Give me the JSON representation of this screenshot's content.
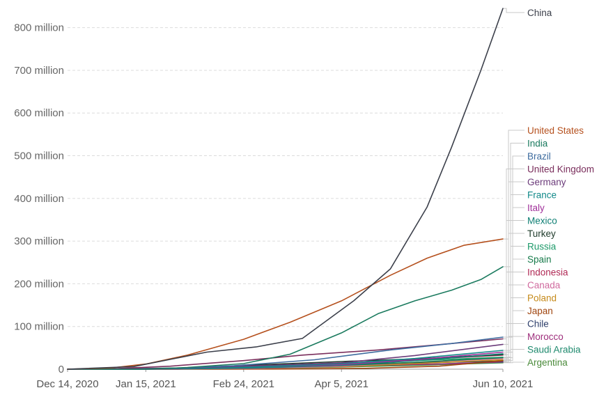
{
  "chart_data": {
    "type": "line",
    "title": "",
    "xlabel": "",
    "ylabel": "",
    "x_ticks": [
      "Dec 14, 2020",
      "Jan 15, 2021",
      "Feb 24, 2021",
      "Apr 5, 2021",
      "Jun 10, 2021"
    ],
    "y_ticks": [
      "0",
      "100 million",
      "200 million",
      "300 million",
      "400 million",
      "500 million",
      "600 million",
      "700 million",
      "800 million"
    ],
    "x_range": [
      "2020-12-14",
      "2021-06-10"
    ],
    "ylim": [
      0,
      850000000
    ],
    "grid": "horizontal dashed",
    "legend": "labels at line ends (right)",
    "series": [
      {
        "name": "China",
        "color": "#3b3f4a",
        "end_value": 845000000,
        "points": [
          [
            "2020-12-14",
            0
          ],
          [
            "2021-01-10",
            6000000
          ],
          [
            "2021-02-09",
            40000000
          ],
          [
            "2021-03-01",
            52000000
          ],
          [
            "2021-03-20",
            72000000
          ],
          [
            "2021-04-10",
            160000000
          ],
          [
            "2021-04-25",
            235000000
          ],
          [
            "2021-05-10",
            380000000
          ],
          [
            "2021-05-20",
            520000000
          ],
          [
            "2021-06-01",
            700000000
          ],
          [
            "2021-06-10",
            845000000
          ]
        ]
      },
      {
        "name": "United States",
        "color": "#b5501d",
        "end_value": 305000000,
        "points": [
          [
            "2020-12-14",
            0
          ],
          [
            "2021-01-01",
            3000000
          ],
          [
            "2021-01-15",
            12000000
          ],
          [
            "2021-02-01",
            33000000
          ],
          [
            "2021-02-24",
            70000000
          ],
          [
            "2021-03-15",
            110000000
          ],
          [
            "2021-04-05",
            160000000
          ],
          [
            "2021-04-25",
            220000000
          ],
          [
            "2021-05-10",
            260000000
          ],
          [
            "2021-05-25",
            290000000
          ],
          [
            "2021-06-10",
            305000000
          ]
        ]
      },
      {
        "name": "India",
        "color": "#1a7a5e",
        "end_value": 240000000,
        "points": [
          [
            "2020-12-14",
            0
          ],
          [
            "2021-01-16",
            0
          ],
          [
            "2021-02-01",
            4000000
          ],
          [
            "2021-02-24",
            13000000
          ],
          [
            "2021-03-15",
            35000000
          ],
          [
            "2021-04-05",
            85000000
          ],
          [
            "2021-04-20",
            130000000
          ],
          [
            "2021-05-05",
            160000000
          ],
          [
            "2021-05-20",
            185000000
          ],
          [
            "2021-06-01",
            210000000
          ],
          [
            "2021-06-10",
            240000000
          ]
        ]
      },
      {
        "name": "Brazil",
        "color": "#3d6b9e",
        "end_value": 75000000,
        "points": [
          [
            "2020-12-14",
            0
          ],
          [
            "2021-01-18",
            0
          ],
          [
            "2021-02-20",
            8000000
          ],
          [
            "2021-03-25",
            22000000
          ],
          [
            "2021-04-25",
            45000000
          ],
          [
            "2021-05-20",
            60000000
          ],
          [
            "2021-06-10",
            75000000
          ]
        ]
      },
      {
        "name": "United Kingdom",
        "color": "#7a2e5c",
        "end_value": 71000000,
        "points": [
          [
            "2020-12-14",
            0
          ],
          [
            "2021-01-01",
            1000000
          ],
          [
            "2021-01-25",
            7000000
          ],
          [
            "2021-02-24",
            20000000
          ],
          [
            "2021-03-20",
            33000000
          ],
          [
            "2021-04-20",
            45000000
          ],
          [
            "2021-05-20",
            60000000
          ],
          [
            "2021-06-10",
            71000000
          ]
        ]
      },
      {
        "name": "Germany",
        "color": "#6b3b7a",
        "end_value": 58000000,
        "points": [
          [
            "2020-12-14",
            0
          ],
          [
            "2021-01-01",
            0
          ],
          [
            "2021-02-01",
            3000000
          ],
          [
            "2021-03-01",
            8000000
          ],
          [
            "2021-04-05",
            15000000
          ],
          [
            "2021-05-05",
            32000000
          ],
          [
            "2021-06-10",
            58000000
          ]
        ]
      },
      {
        "name": "France",
        "color": "#138a8a",
        "end_value": 44000000,
        "points": [
          [
            "2020-12-14",
            0
          ],
          [
            "2021-01-01",
            0
          ],
          [
            "2021-02-01",
            2000000
          ],
          [
            "2021-03-01",
            5000000
          ],
          [
            "2021-04-05",
            13000000
          ],
          [
            "2021-05-05",
            25000000
          ],
          [
            "2021-06-10",
            44000000
          ]
        ]
      },
      {
        "name": "Italy",
        "color": "#a0309a",
        "end_value": 40000000,
        "points": [
          [
            "2020-12-14",
            0
          ],
          [
            "2021-01-01",
            0
          ],
          [
            "2021-02-01",
            2000000
          ],
          [
            "2021-03-01",
            5000000
          ],
          [
            "2021-04-05",
            11000000
          ],
          [
            "2021-05-05",
            22000000
          ],
          [
            "2021-06-10",
            40000000
          ]
        ]
      },
      {
        "name": "Mexico",
        "color": "#0f7f74",
        "end_value": 36000000,
        "points": [
          [
            "2020-12-14",
            0
          ],
          [
            "2021-01-01",
            0
          ],
          [
            "2021-02-01",
            1000000
          ],
          [
            "2021-03-01",
            3000000
          ],
          [
            "2021-04-05",
            9000000
          ],
          [
            "2021-05-05",
            20000000
          ],
          [
            "2021-06-10",
            36000000
          ]
        ]
      },
      {
        "name": "Turkey",
        "color": "#1e3a2a",
        "end_value": 34000000,
        "points": [
          [
            "2020-12-14",
            0
          ],
          [
            "2021-01-13",
            0
          ],
          [
            "2021-02-01",
            2000000
          ],
          [
            "2021-03-01",
            10000000
          ],
          [
            "2021-04-05",
            18000000
          ],
          [
            "2021-05-05",
            24000000
          ],
          [
            "2021-06-10",
            34000000
          ]
        ]
      },
      {
        "name": "Russia",
        "color": "#1e9a6a",
        "end_value": 28000000,
        "points": [
          [
            "2020-12-14",
            0
          ],
          [
            "2021-01-01",
            1000000
          ],
          [
            "2021-02-01",
            3000000
          ],
          [
            "2021-03-01",
            7000000
          ],
          [
            "2021-04-05",
            13000000
          ],
          [
            "2021-05-05",
            20000000
          ],
          [
            "2021-06-10",
            28000000
          ]
        ]
      },
      {
        "name": "Spain",
        "color": "#167a4a",
        "end_value": 27000000,
        "points": [
          [
            "2020-12-14",
            0
          ],
          [
            "2021-01-01",
            0
          ],
          [
            "2021-02-01",
            2000000
          ],
          [
            "2021-03-01",
            4000000
          ],
          [
            "2021-04-05",
            9000000
          ],
          [
            "2021-05-05",
            16000000
          ],
          [
            "2021-06-10",
            27000000
          ]
        ]
      },
      {
        "name": "Indonesia",
        "color": "#b02a55",
        "end_value": 33000000,
        "points": [
          [
            "2020-12-14",
            0
          ],
          [
            "2021-01-13",
            0
          ],
          [
            "2021-02-01",
            1000000
          ],
          [
            "2021-03-01",
            5000000
          ],
          [
            "2021-04-05",
            14000000
          ],
          [
            "2021-05-05",
            22000000
          ],
          [
            "2021-06-10",
            33000000
          ]
        ]
      },
      {
        "name": "Canada",
        "color": "#d06a9e",
        "end_value": 25000000,
        "points": [
          [
            "2020-12-14",
            0
          ],
          [
            "2021-01-01",
            0
          ],
          [
            "2021-02-01",
            1000000
          ],
          [
            "2021-03-01",
            2000000
          ],
          [
            "2021-04-05",
            7000000
          ],
          [
            "2021-05-05",
            16000000
          ],
          [
            "2021-06-10",
            25000000
          ]
        ]
      },
      {
        "name": "Poland",
        "color": "#c58a1a",
        "end_value": 22000000,
        "points": [
          [
            "2020-12-14",
            0
          ],
          [
            "2021-01-01",
            0
          ],
          [
            "2021-02-01",
            1000000
          ],
          [
            "2021-03-01",
            3000000
          ],
          [
            "2021-04-05",
            6000000
          ],
          [
            "2021-05-05",
            13000000
          ],
          [
            "2021-06-10",
            22000000
          ]
        ]
      },
      {
        "name": "Japan",
        "color": "#a0450f",
        "end_value": 20000000,
        "points": [
          [
            "2020-12-14",
            0
          ],
          [
            "2021-02-17",
            0
          ],
          [
            "2021-03-15",
            500000
          ],
          [
            "2021-04-15",
            2000000
          ],
          [
            "2021-05-15",
            7000000
          ],
          [
            "2021-06-10",
            20000000
          ]
        ]
      },
      {
        "name": "Chile",
        "color": "#2e3f6b",
        "end_value": 19000000,
        "points": [
          [
            "2020-12-14",
            0
          ],
          [
            "2021-01-01",
            0
          ],
          [
            "2021-02-03",
            1000000
          ],
          [
            "2021-03-01",
            5000000
          ],
          [
            "2021-04-05",
            11000000
          ],
          [
            "2021-05-05",
            15000000
          ],
          [
            "2021-06-10",
            19000000
          ]
        ]
      },
      {
        "name": "Morocco",
        "color": "#9e2f7c",
        "end_value": 17000000,
        "points": [
          [
            "2020-12-14",
            0
          ],
          [
            "2021-01-28",
            0
          ],
          [
            "2021-02-15",
            3000000
          ],
          [
            "2021-03-15",
            6000000
          ],
          [
            "2021-04-15",
            9000000
          ],
          [
            "2021-05-15",
            12000000
          ],
          [
            "2021-06-10",
            17000000
          ]
        ]
      },
      {
        "name": "Saudi Arabia",
        "color": "#1f8a6e",
        "end_value": 16000000,
        "points": [
          [
            "2020-12-14",
            0
          ],
          [
            "2020-12-20",
            0
          ],
          [
            "2021-02-01",
            1000000
          ],
          [
            "2021-03-01",
            3000000
          ],
          [
            "2021-04-05",
            7000000
          ],
          [
            "2021-05-05",
            11000000
          ],
          [
            "2021-06-10",
            16000000
          ]
        ]
      },
      {
        "name": "Argentina",
        "color": "#4a8a3a",
        "end_value": 15000000,
        "points": [
          [
            "2020-12-14",
            0
          ],
          [
            "2020-12-29",
            0
          ],
          [
            "2021-02-01",
            1000000
          ],
          [
            "2021-03-01",
            2000000
          ],
          [
            "2021-04-05",
            5000000
          ],
          [
            "2021-05-05",
            9000000
          ],
          [
            "2021-06-10",
            15000000
          ]
        ]
      }
    ]
  }
}
